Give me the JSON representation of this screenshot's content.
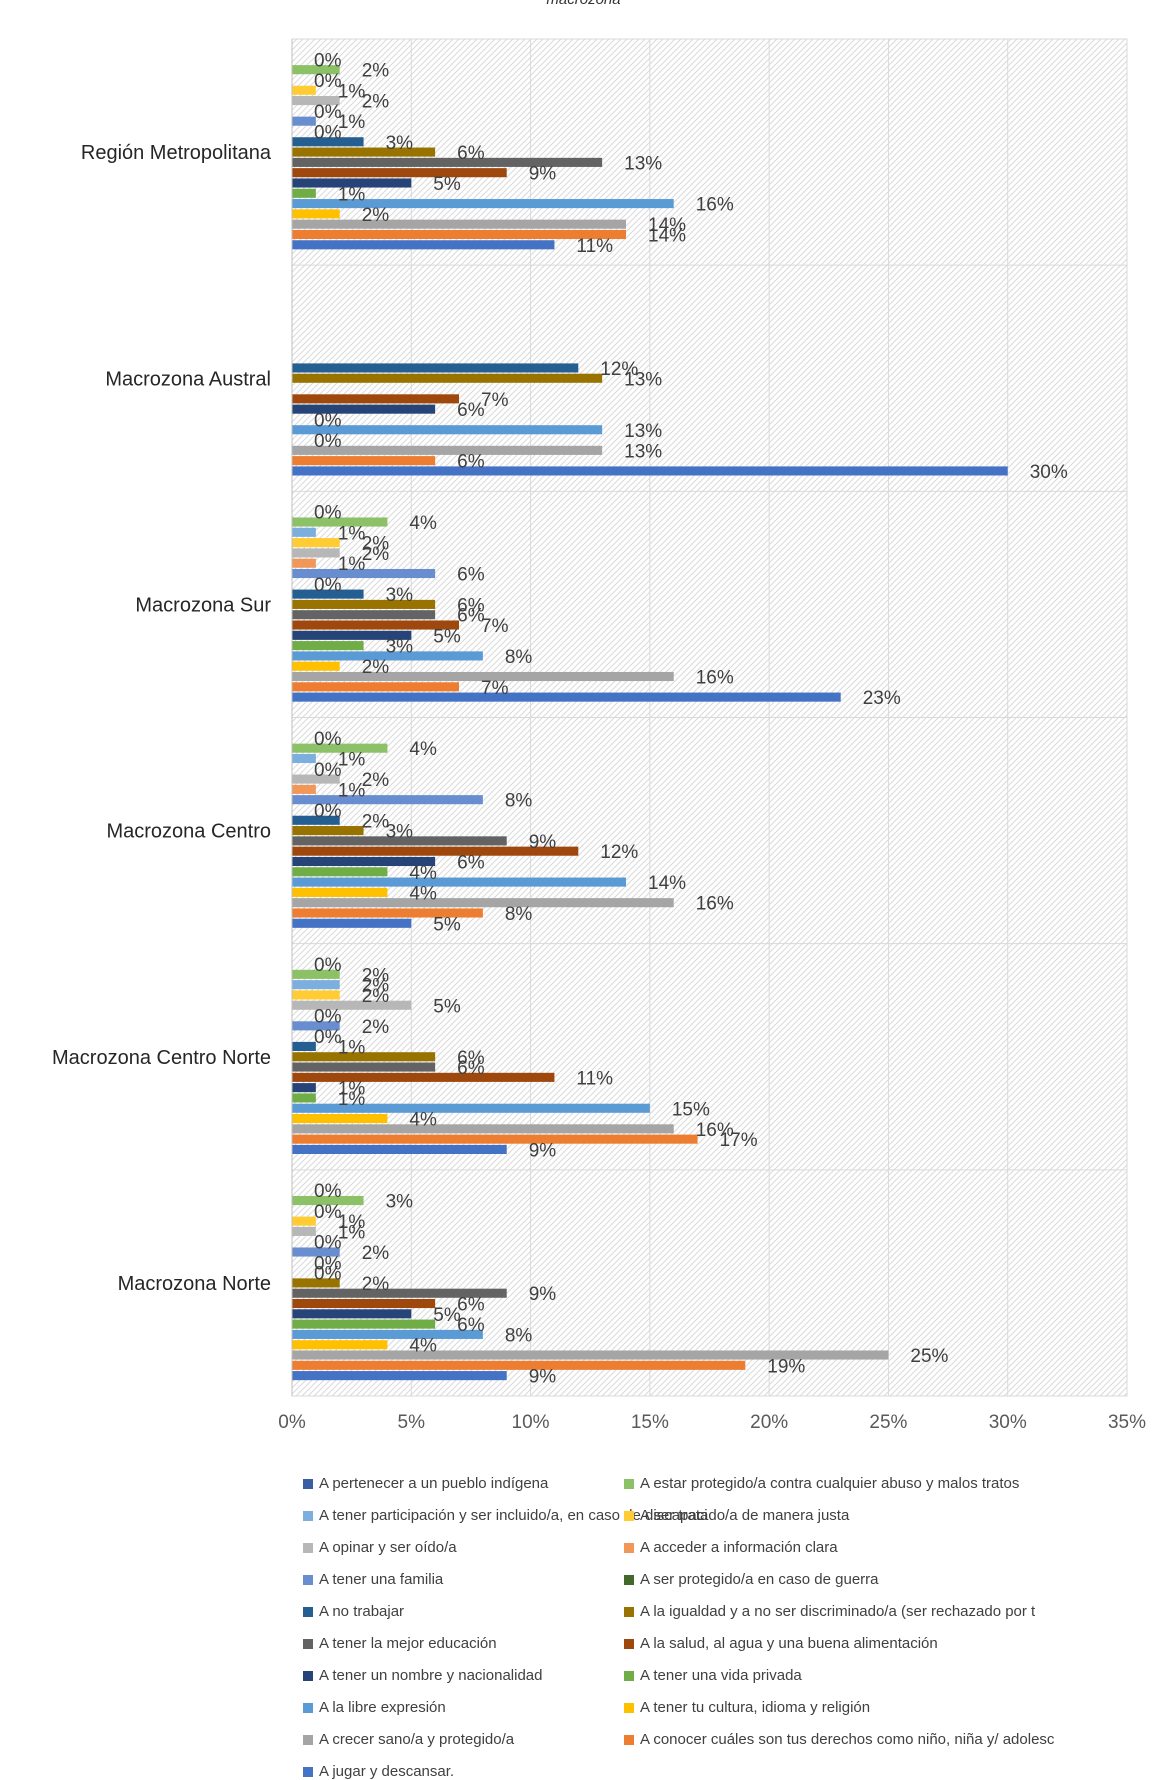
{
  "chart_data": {
    "type": "bar",
    "orientation": "horizontal",
    "title": "macrozona",
    "categories": [
      "Macrozona Norte",
      "Macrozona Centro Norte",
      "Macrozona Centro",
      "Macrozona Sur",
      "Macrozona Austral",
      "Región Metropolitana"
    ],
    "xlim": [
      0,
      35
    ],
    "x_ticks": [
      "0%",
      "5%",
      "10%",
      "15%",
      "20%",
      "25%",
      "30%",
      "35%"
    ],
    "grid": true,
    "legend_position": "bottom",
    "series": [
      {
        "name": "A jugar y descansar.",
        "color": "#4472C4",
        "values": [
          9,
          9,
          5,
          23,
          30,
          11
        ]
      },
      {
        "name": "A conocer cuáles son tus derechos como niño, niña y/ adolesc",
        "color": "#ED7D31",
        "values": [
          19,
          17,
          8,
          7,
          6,
          14
        ]
      },
      {
        "name": "A crecer sano/a y protegido/a",
        "color": "#A5A5A5",
        "values": [
          25,
          16,
          16,
          16,
          13,
          14
        ]
      },
      {
        "name": "A tener tu cultura, idioma y religión",
        "color": "#FFC000",
        "values": [
          4,
          4,
          4,
          2,
          0,
          2
        ]
      },
      {
        "name": "A la libre expresión",
        "color": "#5B9BD5",
        "values": [
          8,
          15,
          14,
          8,
          13,
          16
        ]
      },
      {
        "name": "A tener una vida privada",
        "color": "#70AD47",
        "values": [
          6,
          1,
          4,
          3,
          0,
          1
        ]
      },
      {
        "name": "A tener un nombre y nacionalidad",
        "color": "#264478",
        "values": [
          5,
          1,
          6,
          5,
          6,
          5
        ]
      },
      {
        "name": "A la salud, al agua y una buena alimentación",
        "color": "#9E480E",
        "values": [
          6,
          11,
          12,
          7,
          7,
          9
        ]
      },
      {
        "name": "A tener la mejor educación",
        "color": "#636363",
        "values": [
          9,
          6,
          9,
          6,
          null,
          13
        ]
      },
      {
        "name": "A la igualdad y a no ser discriminado/a (ser rechazado por t",
        "color": "#997300",
        "values": [
          2,
          6,
          3,
          6,
          13,
          6
        ]
      },
      {
        "name": "A no trabajar",
        "color": "#255E91",
        "values": [
          0,
          1,
          2,
          3,
          12,
          3
        ]
      },
      {
        "name": "A ser protegido/a en caso de guerra",
        "color": "#43682B",
        "values": [
          0,
          0,
          0,
          0,
          null,
          0
        ]
      },
      {
        "name": "A tener una familia",
        "color": "#698ED0",
        "values": [
          2,
          2,
          8,
          6,
          null,
          1
        ]
      },
      {
        "name": "A acceder a información clara",
        "color": "#F1975A",
        "values": [
          0,
          0,
          1,
          1,
          null,
          0
        ]
      },
      {
        "name": "A opinar y ser oído/a",
        "color": "#B7B7B7",
        "values": [
          1,
          5,
          2,
          2,
          null,
          2
        ]
      },
      {
        "name": "A ser tratado/a de manera justa",
        "color": "#FFCD33",
        "values": [
          1,
          2,
          0,
          2,
          null,
          1
        ]
      },
      {
        "name": "A tener participación y ser incluido/a, en caso de discapaci",
        "color": "#7CAFDD",
        "values": [
          0,
          2,
          1,
          1,
          null,
          0
        ]
      },
      {
        "name": "A estar protegido/a contra cualquier abuso y malos tratos",
        "color": "#8CC168",
        "values": [
          3,
          2,
          4,
          4,
          null,
          2
        ]
      },
      {
        "name": "A pertenecer a un pueblo indígena",
        "color": "#3A5DA3",
        "values": [
          0,
          0,
          0,
          0,
          null,
          0
        ]
      }
    ],
    "legend_order": [
      "A pertenecer a un pueblo indígena",
      "A estar protegido/a contra cualquier abuso y malos tratos",
      "A tener participación y ser incluido/a, en caso de discapaci",
      "A ser tratado/a de manera justa",
      "A opinar y ser oído/a",
      "A acceder a información clara",
      "A tener una familia",
      "A ser protegido/a en caso de guerra",
      "A no trabajar",
      "A la igualdad y a no ser discriminado/a (ser rechazado por t",
      "A tener la mejor educación",
      "A la salud, al agua y una buena alimentación",
      "A tener un nombre y nacionalidad",
      "A tener una vida privada",
      "A la libre expresión",
      "A tener tu cultura, idioma y religión",
      "A crecer sano/a y protegido/a",
      "A conocer cuáles son tus derechos como niño, niña y/ adolesc",
      "A jugar y descansar."
    ]
  }
}
